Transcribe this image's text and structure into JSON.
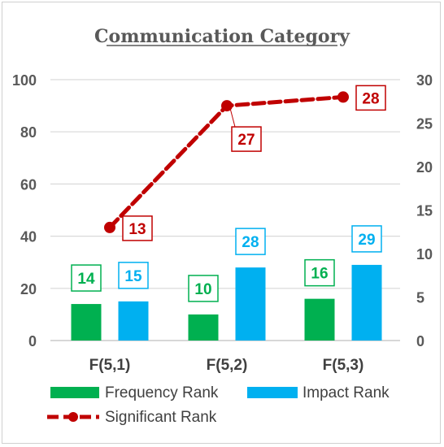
{
  "chart_data": {
    "type": "bar",
    "title": "Communication Category",
    "categories": [
      "F(5,1)",
      "F(5,2)",
      "F(5,3)"
    ],
    "series": [
      {
        "name": "Frequency Rank",
        "kind": "bar",
        "axis": "left",
        "color": "#00b050",
        "values": [
          14,
          10,
          16
        ]
      },
      {
        "name": "Impact Rank",
        "kind": "bar",
        "axis": "left",
        "color": "#00b0f0",
        "values": [
          15,
          28,
          29
        ]
      },
      {
        "name": "Significant Rank",
        "kind": "line",
        "style": "dashed-with-markers",
        "axis": "right",
        "color": "#c00000",
        "values": [
          13,
          27,
          28
        ]
      }
    ],
    "y_left": {
      "min": 0,
      "max": 100,
      "ticks": [
        0,
        20,
        40,
        60,
        80,
        100
      ]
    },
    "y_right": {
      "min": 0,
      "max": 30,
      "ticks": [
        0,
        5,
        10,
        15,
        20,
        25,
        30
      ]
    },
    "grid": true,
    "legend_position": "bottom"
  },
  "colors": {
    "frequency": "#00b050",
    "impact": "#00b0f0",
    "significant": "#c00000",
    "grid": "#d9d9d9",
    "axis_text": "#595959"
  }
}
